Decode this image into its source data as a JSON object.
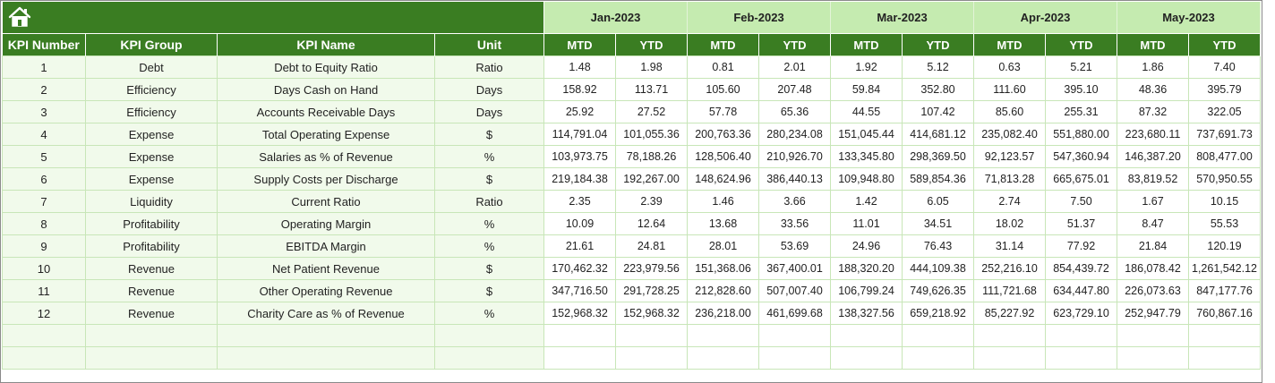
{
  "months": [
    "Jan-2023",
    "Feb-2023",
    "Mar-2023",
    "Apr-2023",
    "May-2023"
  ],
  "headers": {
    "kpi_number": "KPI Number",
    "kpi_group": "KPI Group",
    "kpi_name": "KPI Name",
    "unit": "Unit",
    "mtd": "MTD",
    "ytd": "YTD"
  },
  "icons": {
    "home": "home-icon"
  },
  "colors": {
    "header_green": "#3a7d22",
    "month_green": "#c5ebb0",
    "row_tint": "#f1faeb"
  },
  "rows": [
    {
      "num": "1",
      "group": "Debt",
      "name": "Debt to Equity Ratio",
      "unit": "Ratio",
      "vals": [
        "1.48",
        "1.98",
        "0.81",
        "2.01",
        "1.92",
        "5.12",
        "0.63",
        "5.21",
        "1.86",
        "7.40"
      ]
    },
    {
      "num": "2",
      "group": "Efficiency",
      "name": "Days Cash on Hand",
      "unit": "Days",
      "vals": [
        "158.92",
        "113.71",
        "105.60",
        "207.48",
        "59.84",
        "352.80",
        "111.60",
        "395.10",
        "48.36",
        "395.79"
      ]
    },
    {
      "num": "3",
      "group": "Efficiency",
      "name": "Accounts Receivable Days",
      "unit": "Days",
      "vals": [
        "25.92",
        "27.52",
        "57.78",
        "65.36",
        "44.55",
        "107.42",
        "85.60",
        "255.31",
        "87.32",
        "322.05"
      ]
    },
    {
      "num": "4",
      "group": "Expense",
      "name": "Total Operating Expense",
      "unit": "$",
      "vals": [
        "114,791.04",
        "101,055.36",
        "200,763.36",
        "280,234.08",
        "151,045.44",
        "414,681.12",
        "235,082.40",
        "551,880.00",
        "223,680.11",
        "737,691.73"
      ]
    },
    {
      "num": "5",
      "group": "Expense",
      "name": "Salaries as % of Revenue",
      "unit": "%",
      "vals": [
        "103,973.75",
        "78,188.26",
        "128,506.40",
        "210,926.70",
        "133,345.80",
        "298,369.50",
        "92,123.57",
        "547,360.94",
        "146,387.20",
        "808,477.00"
      ]
    },
    {
      "num": "6",
      "group": "Expense",
      "name": "Supply Costs per Discharge",
      "unit": "$",
      "vals": [
        "219,184.38",
        "192,267.00",
        "148,624.96",
        "386,440.13",
        "109,948.80",
        "589,854.36",
        "71,813.28",
        "665,675.01",
        "83,819.52",
        "570,950.55"
      ]
    },
    {
      "num": "7",
      "group": "Liquidity",
      "name": "Current Ratio",
      "unit": "Ratio",
      "vals": [
        "2.35",
        "2.39",
        "1.46",
        "3.66",
        "1.42",
        "6.05",
        "2.74",
        "7.50",
        "1.67",
        "10.15"
      ]
    },
    {
      "num": "8",
      "group": "Profitability",
      "name": "Operating Margin",
      "unit": "%",
      "vals": [
        "10.09",
        "12.64",
        "13.68",
        "33.56",
        "11.01",
        "34.51",
        "18.02",
        "51.37",
        "8.47",
        "55.53"
      ]
    },
    {
      "num": "9",
      "group": "Profitability",
      "name": "EBITDA Margin",
      "unit": "%",
      "vals": [
        "21.61",
        "24.81",
        "28.01",
        "53.69",
        "24.96",
        "76.43",
        "31.14",
        "77.92",
        "21.84",
        "120.19"
      ]
    },
    {
      "num": "10",
      "group": "Revenue",
      "name": "Net Patient Revenue",
      "unit": "$",
      "vals": [
        "170,462.32",
        "223,979.56",
        "151,368.06",
        "367,400.01",
        "188,320.20",
        "444,109.38",
        "252,216.10",
        "854,439.72",
        "186,078.42",
        "1,261,542.12"
      ]
    },
    {
      "num": "11",
      "group": "Revenue",
      "name": "Other Operating Revenue",
      "unit": "$",
      "vals": [
        "347,716.50",
        "291,728.25",
        "212,828.60",
        "507,007.40",
        "106,799.24",
        "749,626.35",
        "111,721.68",
        "634,447.80",
        "226,073.63",
        "847,177.76"
      ]
    },
    {
      "num": "12",
      "group": "Revenue",
      "name": "Charity Care as % of Revenue",
      "unit": "%",
      "vals": [
        "152,968.32",
        "152,968.32",
        "236,218.00",
        "461,699.68",
        "138,327.56",
        "659,218.92",
        "85,227.92",
        "623,729.10",
        "252,947.79",
        "760,867.16"
      ]
    }
  ]
}
